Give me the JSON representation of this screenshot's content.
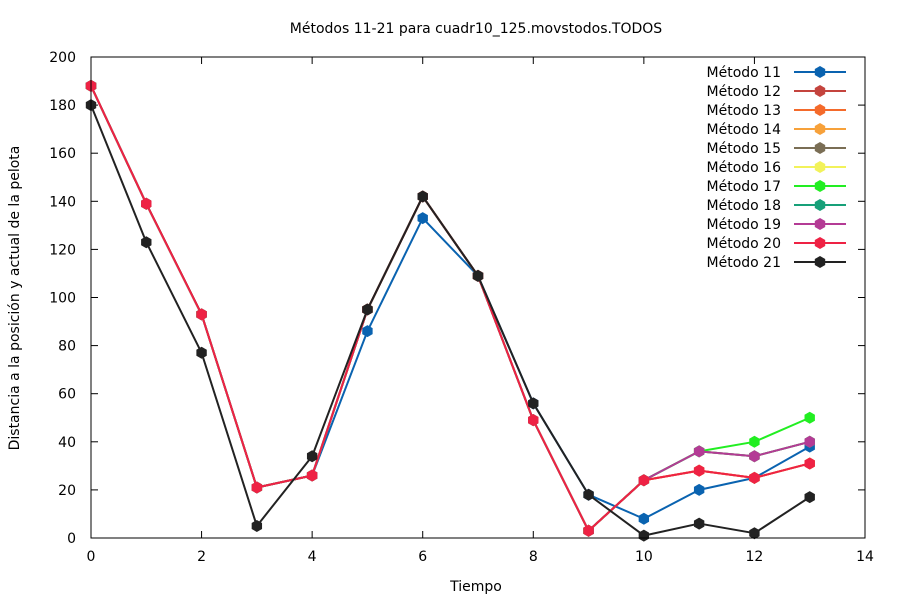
{
  "chart_data": {
    "type": "line",
    "title": "Métodos 11-21 para cuadr10_125.movstodos.TODOS",
    "xlabel": "Tiempo",
    "ylabel": "Distancia a la posición y actual de la pelota",
    "xlim": [
      0,
      14
    ],
    "ylim": [
      0,
      200
    ],
    "xticks": [
      0,
      2,
      4,
      6,
      8,
      10,
      12,
      14
    ],
    "yticks": [
      0,
      20,
      40,
      60,
      80,
      100,
      120,
      140,
      160,
      180,
      200
    ],
    "grid": false,
    "legend_position": "top-right",
    "x": [
      0,
      1,
      2,
      3,
      4,
      5,
      6,
      7,
      8,
      9,
      10,
      11,
      12,
      13
    ],
    "series": [
      {
        "name": "Método 11",
        "color": "#0a63b0",
        "values": [
          188,
          139,
          93,
          21,
          26,
          86,
          133,
          109,
          56,
          18,
          8,
          20,
          25,
          38
        ]
      },
      {
        "name": "Método 12",
        "color": "#c4443e",
        "values": [
          188,
          139,
          93,
          21,
          26,
          95,
          142,
          109,
          49,
          3,
          24,
          28,
          25,
          31
        ]
      },
      {
        "name": "Método 13",
        "color": "#f46a2b",
        "values": [
          188,
          139,
          93,
          21,
          26,
          95,
          142,
          109,
          49,
          3,
          24,
          28,
          25,
          31
        ]
      },
      {
        "name": "Método 14",
        "color": "#f7a13a",
        "values": [
          188,
          139,
          93,
          21,
          26,
          95,
          142,
          109,
          49,
          3,
          24,
          28,
          25,
          31
        ]
      },
      {
        "name": "Método 15",
        "color": "#7a6e55",
        "values": [
          188,
          139,
          93,
          21,
          26,
          95,
          142,
          109,
          49,
          3,
          24,
          36,
          34,
          40
        ]
      },
      {
        "name": "Método 16",
        "color": "#f2f25a",
        "values": [
          188,
          139,
          93,
          21,
          26,
          95,
          142,
          109,
          49,
          3,
          24,
          36,
          34,
          40
        ]
      },
      {
        "name": "Método 17",
        "color": "#22ee22",
        "values": [
          188,
          139,
          93,
          21,
          26,
          95,
          142,
          109,
          49,
          3,
          24,
          36,
          40,
          50
        ]
      },
      {
        "name": "Método 18",
        "color": "#17a079",
        "values": [
          188,
          139,
          93,
          21,
          26,
          95,
          142,
          109,
          49,
          3,
          24,
          36,
          34,
          40
        ]
      },
      {
        "name": "Método 19",
        "color": "#b43b95",
        "values": [
          188,
          139,
          93,
          21,
          26,
          95,
          142,
          109,
          49,
          3,
          24,
          36,
          34,
          40
        ]
      },
      {
        "name": "Método 20",
        "color": "#ee2244",
        "values": [
          188,
          139,
          93,
          21,
          26,
          95,
          142,
          109,
          49,
          3,
          24,
          28,
          25,
          31
        ]
      },
      {
        "name": "Método 21",
        "color": "#222222",
        "values": [
          180,
          123,
          77,
          5,
          34,
          95,
          142,
          109,
          56,
          18,
          1,
          6,
          2,
          17
        ]
      }
    ]
  }
}
